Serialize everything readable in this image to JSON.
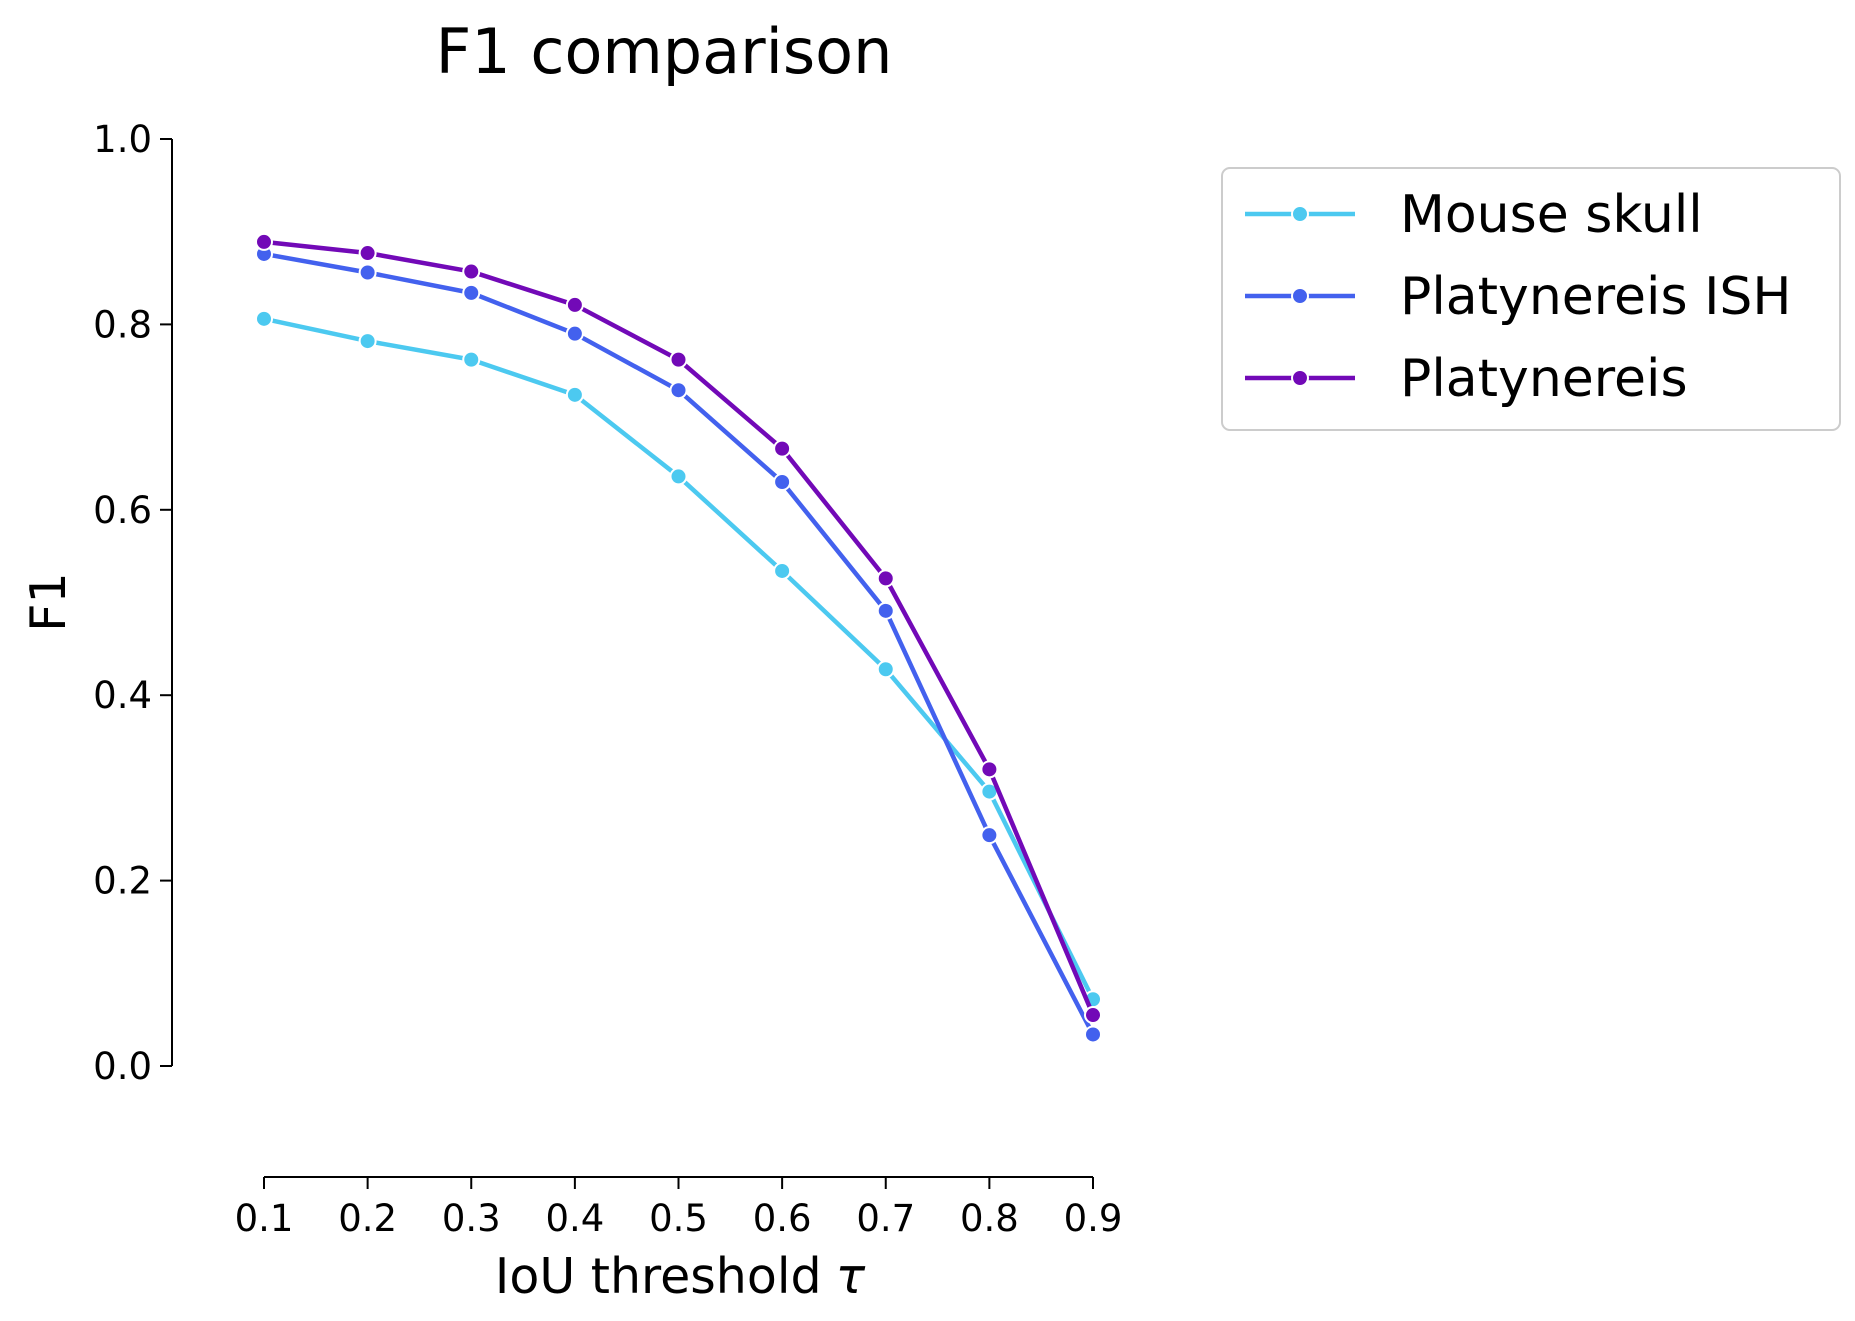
{
  "chart_data": {
    "type": "line",
    "title": "F1 comparison",
    "xlabel": "IoU threshold",
    "xlabel_symbol": "τ",
    "ylabel": "F1",
    "x": [
      0.1,
      0.2,
      0.3,
      0.4,
      0.5,
      0.6,
      0.7,
      0.8,
      0.9
    ],
    "xticks": [
      "0.1",
      "0.2",
      "0.3",
      "0.4",
      "0.5",
      "0.6",
      "0.7",
      "0.8",
      "0.9"
    ],
    "yticks": [
      "0.0",
      "0.2",
      "0.4",
      "0.6",
      "0.8",
      "1.0"
    ],
    "xlim": [
      0.1,
      0.9
    ],
    "ylim": [
      0.0,
      1.0
    ],
    "grid": false,
    "legend_position": "outside-top-right",
    "series": [
      {
        "name": "Mouse skull",
        "color": "#4cc9f0",
        "values": [
          0.806,
          0.782,
          0.762,
          0.724,
          0.636,
          0.534,
          0.428,
          0.296,
          0.072
        ]
      },
      {
        "name": "Platynereis ISH",
        "color": "#4361ee",
        "values": [
          0.876,
          0.856,
          0.834,
          0.79,
          0.729,
          0.63,
          0.491,
          0.249,
          0.034
        ]
      },
      {
        "name": "Platynereis",
        "color": "#7209b7",
        "values": [
          0.889,
          0.877,
          0.857,
          0.821,
          0.762,
          0.666,
          0.526,
          0.32,
          0.055
        ]
      }
    ]
  }
}
